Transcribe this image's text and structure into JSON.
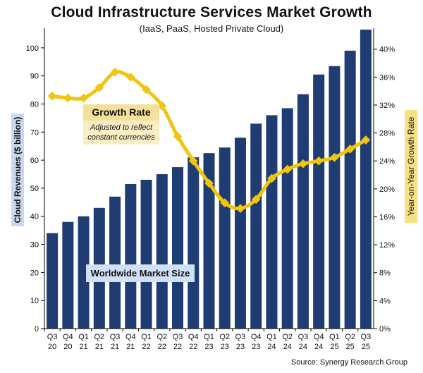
{
  "chart_data": {
    "type": "bar",
    "title": "Cloud Infrastructure Services Market Growth",
    "subtitle": "(IaaS, PaaS, Hosted Private Cloud)",
    "source": "Source: Synergy Research Group",
    "categories": [
      "Q3 20",
      "Q4 20",
      "Q1 21",
      "Q2 21",
      "Q3 21",
      "Q4 21",
      "Q1 22",
      "Q2 22",
      "Q3 22",
      "Q4 22",
      "Q1 23",
      "Q2 23",
      "Q3 23",
      "Q4 23",
      "Q1 24",
      "Q2 24",
      "Q3 24",
      "Q4 24",
      "Q1 25",
      "Q2 25",
      "Q3 25"
    ],
    "category_lines": [
      [
        "Q3",
        "20"
      ],
      [
        "Q4",
        "20"
      ],
      [
        "Q1",
        "21"
      ],
      [
        "Q2",
        "21"
      ],
      [
        "Q3",
        "21"
      ],
      [
        "Q4",
        "21"
      ],
      [
        "Q1",
        "22"
      ],
      [
        "Q2",
        "22"
      ],
      [
        "Q3",
        "22"
      ],
      [
        "Q4",
        "22"
      ],
      [
        "Q1",
        "23"
      ],
      [
        "Q2",
        "23"
      ],
      [
        "Q3",
        "23"
      ],
      [
        "Q4",
        "23"
      ],
      [
        "Q1",
        "24"
      ],
      [
        "Q2",
        "24"
      ],
      [
        "Q3",
        "24"
      ],
      [
        "Q4",
        "24"
      ],
      [
        "Q1",
        "25"
      ],
      [
        "Q2",
        "25"
      ],
      [
        "Q3",
        "25"
      ]
    ],
    "ylabel": "Cloud Revenues ($ billion)",
    "y2label": "Year-on-Year Growth Rate",
    "ylim": [
      0,
      107
    ],
    "y2lim": [
      0,
      43
    ],
    "yticks": [
      0,
      10,
      20,
      30,
      40,
      50,
      60,
      70,
      80,
      90,
      100
    ],
    "y2ticks": [
      0,
      4,
      8,
      12,
      16,
      20,
      24,
      28,
      32,
      36,
      40
    ],
    "y2tick_suffix": "%",
    "grid": false,
    "series": [
      {
        "name": "Worldwide Market Size",
        "kind": "bar",
        "axis": "left",
        "color": "#1f3d73",
        "values": [
          34,
          38,
          40,
          43,
          47,
          51.5,
          53,
          55,
          57.5,
          61,
          62.5,
          64.5,
          68,
          73,
          76,
          78.5,
          83.5,
          90.5,
          93.5,
          99,
          106.5
        ]
      },
      {
        "name": "Growth Rate",
        "kind": "line",
        "axis": "right",
        "color": "#f1c40f",
        "values": [
          33.3,
          33.0,
          33.0,
          34.5,
          36.7,
          36.0,
          34.2,
          31.9,
          27.5,
          24.0,
          20.8,
          18.0,
          17.2,
          18.5,
          21.5,
          22.8,
          23.6,
          24.0,
          24.5,
          25.7,
          27.0
        ]
      }
    ],
    "annotations": {
      "growth_label": "Growth Rate",
      "growth_note": "Adjusted to reflect constant currencies",
      "market_label": "Worldwide Market Size"
    }
  }
}
